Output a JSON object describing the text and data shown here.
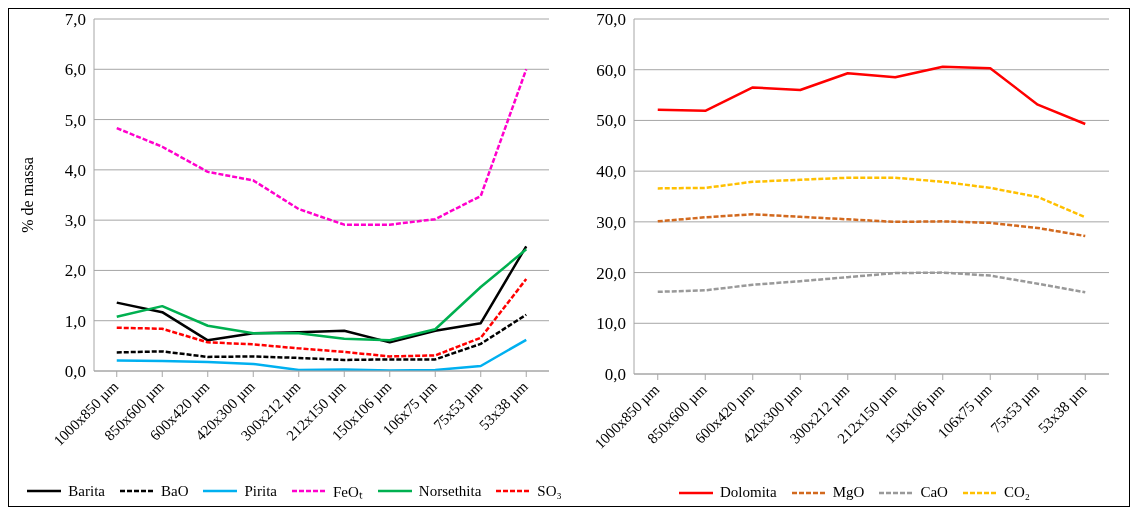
{
  "chart_data": [
    {
      "type": "line",
      "ylabel": "% de massa",
      "categories": [
        "1000x850 µm",
        "850x600 µm",
        "600x420 µm",
        "420x300 µm",
        "300x212 µm",
        "212x150 µm",
        "150x106 µm",
        "106x75 µm",
        "75x53 µm",
        "53x38 µm"
      ],
      "ylim": [
        0,
        7
      ],
      "yticks": [
        {
          "value": 0,
          "label": "0,0"
        },
        {
          "value": 1,
          "label": "1,0"
        },
        {
          "value": 2,
          "label": "2,0"
        },
        {
          "value": 3,
          "label": "3,0"
        },
        {
          "value": 4,
          "label": "4,0"
        },
        {
          "value": 5,
          "label": "5,0"
        },
        {
          "value": 6,
          "label": "6,0"
        },
        {
          "value": 7,
          "label": "7,0"
        }
      ],
      "grid": "y",
      "legend": "bottom",
      "marker": "none",
      "series": [
        {
          "name": "Barita",
          "color": "#000000",
          "line_style": "solid",
          "values": [
            1.36,
            1.17,
            0.61,
            0.75,
            0.77,
            0.8,
            0.57,
            0.8,
            0.95,
            2.48
          ]
        },
        {
          "name": "BaO",
          "color": "#000000",
          "line_style": "dashed",
          "values": [
            0.37,
            0.39,
            0.28,
            0.29,
            0.26,
            0.22,
            0.23,
            0.23,
            0.54,
            1.12
          ]
        },
        {
          "name": "Pirita",
          "color": "#00b0f0",
          "line_style": "solid",
          "values": [
            0.21,
            0.2,
            0.18,
            0.14,
            0.02,
            0.03,
            0.01,
            0.02,
            0.1,
            0.62
          ]
        },
        {
          "name": "FeOₜ",
          "color": "#ff00cc",
          "line_style": "dashed",
          "values": [
            4.83,
            4.46,
            3.96,
            3.79,
            3.22,
            2.91,
            2.91,
            3.02,
            3.48,
            6.0
          ]
        },
        {
          "name": "Norsethita",
          "color": "#00b050",
          "line_style": "solid",
          "values": [
            1.08,
            1.29,
            0.9,
            0.75,
            0.75,
            0.64,
            0.61,
            0.83,
            1.67,
            2.42
          ]
        },
        {
          "name": "SO₃",
          "color": "#ff0000",
          "line_style": "dashed",
          "values": [
            0.86,
            0.84,
            0.57,
            0.53,
            0.45,
            0.38,
            0.29,
            0.31,
            0.66,
            1.83
          ]
        }
      ]
    },
    {
      "type": "line",
      "categories": [
        "1000x850 µm",
        "850x600 µm",
        "600x420 µm",
        "420x300 µm",
        "300x212 µm",
        "212x150 µm",
        "150x106 µm",
        "106x75 µm",
        "75x53 µm",
        "53x38 µm"
      ],
      "ylim": [
        0,
        70
      ],
      "yticks": [
        {
          "value": 0,
          "label": "0,0"
        },
        {
          "value": 10,
          "label": "10,0"
        },
        {
          "value": 20,
          "label": "20,0"
        },
        {
          "value": 30,
          "label": "30,0"
        },
        {
          "value": 40,
          "label": "40,0"
        },
        {
          "value": 50,
          "label": "50,0"
        },
        {
          "value": 60,
          "label": "60,0"
        },
        {
          "value": 70,
          "label": "70,0"
        }
      ],
      "grid": "y",
      "legend": "bottom",
      "marker": "none",
      "series": [
        {
          "name": "Dolomita",
          "color": "#ff0000",
          "line_style": "solid",
          "values": [
            52.1,
            51.9,
            56.5,
            56.0,
            59.3,
            58.5,
            60.6,
            60.3,
            53.1,
            49.3
          ]
        },
        {
          "name": "MgO",
          "color": "#d2691e",
          "line_style": "dashed",
          "values": [
            30.1,
            30.9,
            31.5,
            31.0,
            30.5,
            30.0,
            30.1,
            29.8,
            28.8,
            27.2
          ]
        },
        {
          "name": "CaO",
          "color": "#999999",
          "line_style": "dashed",
          "values": [
            16.2,
            16.5,
            17.6,
            18.3,
            19.1,
            19.9,
            20.0,
            19.4,
            17.8,
            16.1
          ]
        },
        {
          "name": "CO₂",
          "color": "#ffc000",
          "line_style": "dashed",
          "values": [
            36.6,
            36.7,
            37.9,
            38.3,
            38.7,
            38.7,
            37.9,
            36.7,
            34.9,
            30.9
          ]
        }
      ]
    }
  ]
}
